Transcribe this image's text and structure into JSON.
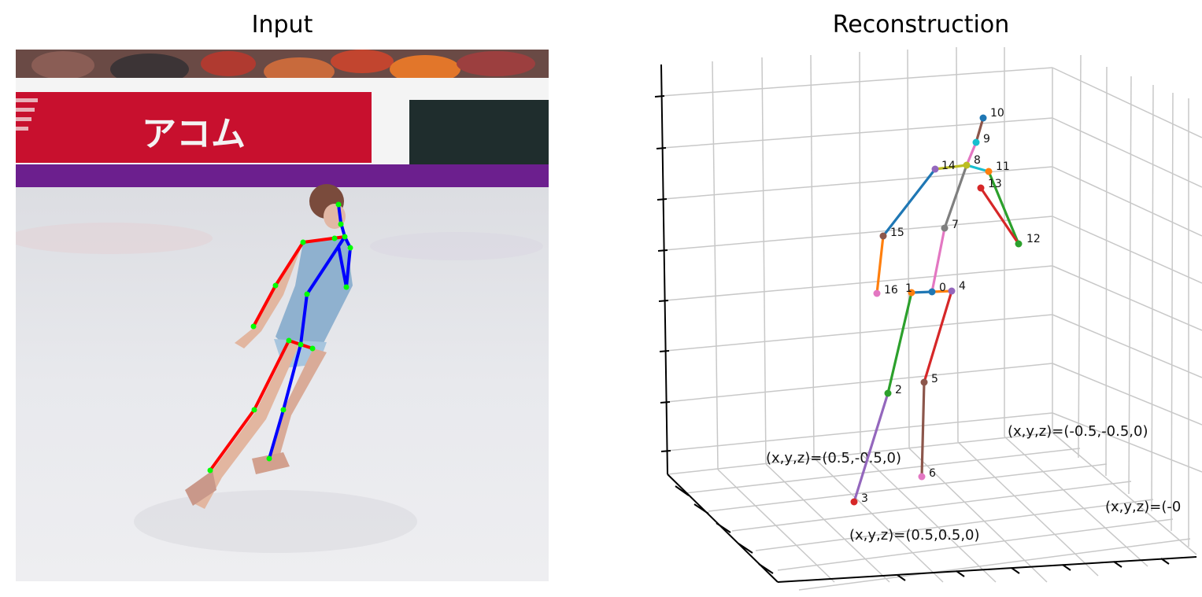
{
  "panels": {
    "input": {
      "title": "Input"
    },
    "reconstruction": {
      "title": "Reconstruction"
    }
  },
  "sign": {
    "text": "アコム"
  },
  "colors": {
    "ice": "#e7e8ec",
    "banner_red": "#c8102e",
    "banner_dark": "#1f2d2d",
    "purple_stripe": "#6c1f8e",
    "skeleton_left": "#ff0000",
    "skeleton_right": "#0000ff",
    "keypoint": "#00ff00",
    "grid": "#c8c8c8"
  },
  "corner_labels": [
    {
      "id": "near-left",
      "text": "(x,y,z)=(0.5,-0.5,0)"
    },
    {
      "id": "far-right",
      "text": "(x,y,z)=(-0.5,-0.5,0)"
    },
    {
      "id": "front",
      "text": "(x,y,z)=(0.5,0.5,0)"
    },
    {
      "id": "right-edge",
      "text": "(x,y,z)=(-0"
    }
  ],
  "joints": [
    {
      "id": 0,
      "label": "0",
      "color": "#1f77b4"
    },
    {
      "id": 1,
      "label": "1",
      "color": "#ff7f0e"
    },
    {
      "id": 2,
      "label": "2",
      "color": "#2ca02c"
    },
    {
      "id": 3,
      "label": "3",
      "color": "#d62728"
    },
    {
      "id": 4,
      "label": "4",
      "color": "#9467bd"
    },
    {
      "id": 5,
      "label": "5",
      "color": "#8c564b"
    },
    {
      "id": 6,
      "label": "6",
      "color": "#e377c2"
    },
    {
      "id": 7,
      "label": "7",
      "color": "#7f7f7f"
    },
    {
      "id": 8,
      "label": "8",
      "color": "#bcbd22"
    },
    {
      "id": 9,
      "label": "9",
      "color": "#17becf"
    },
    {
      "id": 10,
      "label": "10",
      "color": "#1f77b4"
    },
    {
      "id": 11,
      "label": "11",
      "color": "#ff7f0e"
    },
    {
      "id": 12,
      "label": "12",
      "color": "#2ca02c"
    },
    {
      "id": 13,
      "label": "13",
      "color": "#d62728"
    },
    {
      "id": 14,
      "label": "14",
      "color": "#9467bd"
    },
    {
      "id": 15,
      "label": "15",
      "color": "#8c564b"
    },
    {
      "id": 16,
      "label": "16",
      "color": "#e377c2"
    }
  ],
  "bones": [
    {
      "from": 0,
      "to": 1,
      "color": "#1f77b4"
    },
    {
      "from": 1,
      "to": 2,
      "color": "#2ca02c"
    },
    {
      "from": 2,
      "to": 3,
      "color": "#9467bd"
    },
    {
      "from": 0,
      "to": 4,
      "color": "#ff7f0e"
    },
    {
      "from": 4,
      "to": 5,
      "color": "#d62728"
    },
    {
      "from": 5,
      "to": 6,
      "color": "#8c564b"
    },
    {
      "from": 0,
      "to": 7,
      "color": "#e377c2"
    },
    {
      "from": 7,
      "to": 8,
      "color": "#7f7f7f"
    },
    {
      "from": 8,
      "to": 9,
      "color": "#e377c2"
    },
    {
      "from": 9,
      "to": 10,
      "color": "#8c564b"
    },
    {
      "from": 8,
      "to": 11,
      "color": "#17becf"
    },
    {
      "from": 11,
      "to": 12,
      "color": "#2ca02c"
    },
    {
      "from": 12,
      "to": 13,
      "color": "#d62728"
    },
    {
      "from": 8,
      "to": 14,
      "color": "#bcbd22"
    },
    {
      "from": 14,
      "to": 15,
      "color": "#1f77b4"
    },
    {
      "from": 15,
      "to": 16,
      "color": "#ff7f0e"
    }
  ]
}
